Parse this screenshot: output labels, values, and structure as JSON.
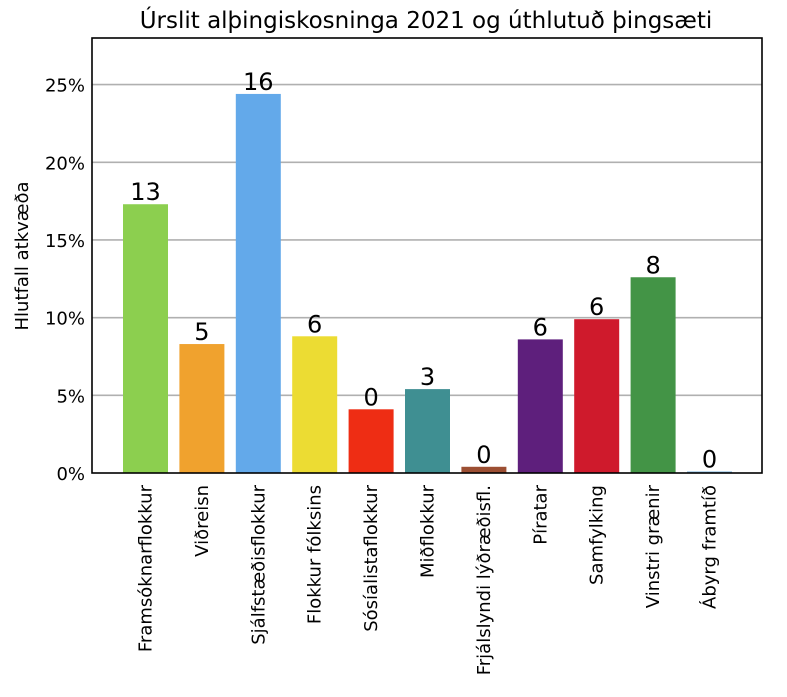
{
  "chart_data": {
    "type": "bar",
    "title": "Úrslit alþingiskosninga 2021 og úthlutuð þingsæti",
    "xlabel": "",
    "ylabel": "Hlutfall atkvæða",
    "ylim": [
      0,
      0.28
    ],
    "yticks": [
      0,
      0.05,
      0.1,
      0.15,
      0.2,
      0.25
    ],
    "ytick_labels": [
      "0%",
      "5%",
      "10%",
      "15%",
      "20%",
      "25%"
    ],
    "grid": "horizontal",
    "categories": [
      "Framsóknarflokkur",
      "Viðreisn",
      "Sjálfstæðisflokkur",
      "Flokkur fólksins",
      "Sósíalistaflokkur",
      "Miðflokkur",
      "Frjálslyndi lýðræðisfl.",
      "Píratar",
      "Samfylking",
      "Vinstri grænir",
      "Ábyrg framtíð"
    ],
    "values": [
      0.173,
      0.083,
      0.244,
      0.088,
      0.041,
      0.054,
      0.004,
      0.086,
      0.099,
      0.126,
      0.001
    ],
    "seats": [
      "13",
      "5",
      "16",
      "6",
      "0",
      "3",
      "0",
      "6",
      "6",
      "8",
      "0"
    ],
    "colors": [
      "#8ccf4f",
      "#f0a22e",
      "#63a9ea",
      "#ecdc33",
      "#ee2d14",
      "#3f8f92",
      "#9c4f33",
      "#5e1f7c",
      "#cf1a2c",
      "#439446",
      "#7fb6dc"
    ]
  }
}
